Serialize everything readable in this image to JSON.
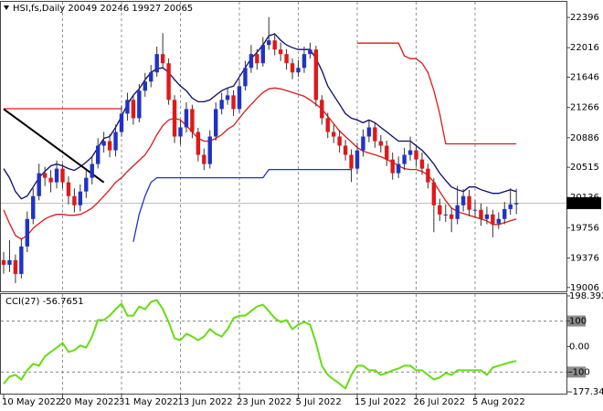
{
  "chart_data": {
    "type": "candlestick",
    "title": "HSI,fs,Daily  20049 20246 19927 20065",
    "categories": [
      "10 May 2022",
      null,
      null,
      null,
      null,
      null,
      null,
      null,
      null,
      null,
      "20 May 2022",
      null,
      null,
      null,
      null,
      null,
      null,
      null,
      null,
      null,
      "31 May 2022",
      null,
      null,
      null,
      null,
      null,
      null,
      null,
      null,
      null,
      "13 Jun 2022",
      null,
      null,
      null,
      null,
      null,
      null,
      null,
      null,
      null,
      "23 Jun 2022",
      null,
      null,
      null,
      null,
      null,
      null,
      null,
      null,
      null,
      "5 Jul 2022",
      null,
      null,
      null,
      null,
      null,
      null,
      null,
      null,
      null,
      "15 Jul 2022",
      null,
      null,
      null,
      null,
      null,
      null,
      null,
      null,
      null,
      "26 Jul 2022",
      null,
      null,
      null,
      null,
      null,
      null,
      null,
      null,
      null,
      "5 Aug 2022",
      null,
      null,
      null,
      null,
      null,
      null,
      null
    ],
    "open": [
      19350,
      19291,
      19349,
      19176,
      19521,
      19866,
      20153,
      20441,
      20383,
      20326,
      20498,
      20326,
      20153,
      20038,
      20211,
      20383,
      20556,
      20786,
      20843,
      20728,
      20958,
      21188,
      21361,
      21131,
      21476,
      21591,
      21706,
      21936,
      21821,
      21361,
      20901,
      21016,
      21246,
      20958,
      20671,
      20556,
      20901,
      21246,
      21361,
      21418,
      21246,
      21533,
      21763,
      21936,
      21821,
      22051,
      22108,
      21993,
      21936,
      21821,
      21706,
      21763,
      21936,
      21993,
      21361,
      21131,
      20958,
      20901,
      20786,
      20671,
      20498,
      20728,
      20901,
      21016,
      20843,
      20786,
      20613,
      20441,
      20556,
      20671,
      20728,
      20613,
      20498,
      20326,
      20038,
      19923,
      19923,
      19866,
      20038,
      20153,
      19981,
      19981,
      19866,
      19923,
      19808,
      19866,
      19990,
      20049
    ],
    "high": [
      19450,
      19600,
      19420,
      19620,
      19960,
      20250,
      20560,
      20520,
      20480,
      20600,
      20560,
      20400,
      20250,
      20300,
      20470,
      20640,
      20880,
      20960,
      20930,
      21050,
      21290,
      21450,
      21420,
      21560,
      21700,
      21800,
      22030,
      22200,
      21880,
      21420,
      21100,
      21330,
      21300,
      21010,
      20750,
      20980,
      21330,
      21450,
      21520,
      21480,
      21620,
      21850,
      22050,
      22000,
      22150,
      22400,
      22200,
      22080,
      22000,
      21880,
      21860,
      22030,
      22080,
      22040,
      21420,
      21200,
      21050,
      20980,
      20860,
      20740,
      20820,
      20990,
      21110,
      21080,
      20920,
      20850,
      20700,
      20650,
      20760,
      20900,
      20800,
      20700,
      20560,
      20380,
      20120,
      20050,
      20000,
      20280,
      20240,
      20230,
      20100,
      20060,
      20020,
      19980,
      19950,
      20080,
      20250,
      20246
    ],
    "low": [
      19180,
      19200,
      19061,
      19120,
      19450,
      19800,
      20100,
      20280,
      20200,
      20250,
      20250,
      20050,
      19950,
      19960,
      20130,
      20300,
      20500,
      20700,
      20640,
      20650,
      20900,
      21100,
      21050,
      21080,
      21400,
      21520,
      21650,
      21750,
      21300,
      20820,
      20800,
      20950,
      20880,
      20590,
      20480,
      20500,
      20850,
      21180,
      21300,
      21160,
      21200,
      21480,
      21700,
      21740,
      21780,
      21990,
      21920,
      21850,
      21740,
      21620,
      21650,
      21700,
      21880,
      21280,
      21050,
      20880,
      20820,
      20700,
      20600,
      20330,
      20430,
      20650,
      20830,
      20760,
      20700,
      20530,
      20360,
      20380,
      20480,
      20600,
      20530,
      20420,
      20250,
      19700,
      19840,
      19830,
      19700,
      19800,
      19960,
      19900,
      19880,
      19780,
      19800,
      19636,
      19740,
      19800,
      19920,
      19927
    ],
    "close": [
      19291,
      19349,
      19176,
      19521,
      19866,
      20153,
      20441,
      20383,
      20326,
      20498,
      20326,
      20153,
      20038,
      20211,
      20383,
      20556,
      20786,
      20843,
      20728,
      20958,
      21188,
      21361,
      21131,
      21476,
      21591,
      21706,
      21936,
      21821,
      21361,
      20901,
      21016,
      21246,
      20958,
      20671,
      20556,
      20901,
      21246,
      21361,
      21418,
      21246,
      21533,
      21763,
      21936,
      21821,
      22051,
      22108,
      21993,
      21936,
      21821,
      21706,
      21763,
      21936,
      21993,
      21361,
      21131,
      20958,
      20901,
      20786,
      20671,
      20498,
      20728,
      20901,
      21016,
      20843,
      20786,
      20613,
      20441,
      20556,
      20671,
      20728,
      20613,
      20498,
      20326,
      20038,
      19923,
      19923,
      19866,
      20038,
      20153,
      19981,
      19981,
      19866,
      19923,
      19808,
      19866,
      19990,
      20049,
      20065
    ],
    "up_color": "#1f33c6",
    "down_color": "#e01818",
    "ylim": [
      18946,
      22592
    ],
    "yticks": [
      19006,
      19376,
      19756,
      20136,
      20515,
      20886,
      21266,
      21646,
      22016,
      22396
    ],
    "series": [
      {
        "color": "#0a0a6e",
        "values": [
          20498,
          20384,
          20211,
          20119,
          20154,
          20268,
          20384,
          20464,
          20533,
          20556,
          20533,
          20498,
          20476,
          20522,
          20579,
          20648,
          20763,
          20878,
          20901,
          21016,
          21154,
          21304,
          21419,
          21499,
          21614,
          21706,
          21752,
          21764,
          21706,
          21614,
          21534,
          21476,
          21384,
          21338,
          21338,
          21361,
          21419,
          21476,
          21511,
          21534,
          21649,
          21764,
          21879,
          21959,
          22051,
          22166,
          22189,
          22109,
          22051,
          22017,
          21994,
          21994,
          21994,
          21879,
          21729,
          21534,
          21419,
          21304,
          21189,
          21131,
          21108,
          21074,
          21108,
          21074,
          21016,
          20959,
          20901,
          20844,
          20844,
          20844,
          20786,
          20729,
          20648,
          20556,
          20441,
          20349,
          20268,
          20234,
          20211,
          20268,
          20268,
          20234,
          20211,
          20188,
          20188,
          20211,
          20234,
          20211
        ]
      },
      {
        "color": "#e01818",
        "values": [
          19981,
          19809,
          19659,
          19613,
          19659,
          19751,
          19809,
          19866,
          19901,
          19924,
          19924,
          19912,
          19912,
          19924,
          19958,
          20004,
          20073,
          20154,
          20234,
          20326,
          20384,
          20464,
          20533,
          20602,
          20671,
          20786,
          20924,
          21039,
          21108,
          21131,
          21108,
          21039,
          20959,
          20878,
          20844,
          20844,
          20878,
          20924,
          20993,
          21039,
          21131,
          21223,
          21304,
          21384,
          21453,
          21499,
          21511,
          21499,
          21476,
          21453,
          21430,
          21407,
          21361,
          21304,
          21246,
          21154,
          21062,
          20970,
          20901,
          20832,
          20763,
          20717,
          20694,
          20671,
          20648,
          20613,
          20579,
          20533,
          20498,
          20487,
          20487,
          20464,
          20418,
          20326,
          20211,
          20096,
          20004,
          19958,
          19935,
          19912,
          19889,
          19866,
          19843,
          19797,
          19797,
          19820,
          19843,
          19866
        ]
      },
      {
        "color": "#e01818",
        "values": [
          21250,
          21250,
          21250,
          21250,
          21250,
          21250,
          21250,
          21250,
          21250,
          21250,
          21250,
          21250,
          21250,
          21250,
          21250,
          21250,
          21250,
          21250,
          21250,
          21250,
          21250,
          null,
          null,
          null,
          null,
          null,
          null,
          null,
          null,
          null,
          null,
          null,
          null,
          null,
          null,
          null,
          null,
          null,
          null,
          null,
          null,
          null,
          null,
          null,
          null,
          null,
          null,
          null,
          null,
          null,
          null,
          null,
          null,
          null,
          null,
          null,
          null,
          null,
          null,
          null,
          22074,
          22074,
          22074,
          22074,
          22074,
          22074,
          22074,
          22074,
          21913,
          21879,
          21879,
          21821,
          21706,
          21476,
          21189,
          20809,
          20809,
          20809,
          20809,
          20809,
          20809,
          20809,
          20809,
          20809,
          20809,
          20809,
          20809,
          20809
        ]
      },
      {
        "color": "#1f33c6",
        "values": [
          null,
          null,
          null,
          null,
          null,
          null,
          null,
          null,
          null,
          null,
          null,
          null,
          null,
          null,
          null,
          null,
          null,
          null,
          null,
          null,
          null,
          null,
          19579,
          19924,
          20154,
          20326,
          20384,
          20384,
          20384,
          20384,
          20384,
          20384,
          20384,
          20384,
          20384,
          20384,
          20384,
          20384,
          20384,
          20384,
          20384,
          20384,
          20384,
          20384,
          20384,
          20487,
          20487,
          20487,
          20487,
          20487,
          20487,
          20487,
          20487,
          20487,
          20487,
          20487,
          20487,
          20487,
          20487,
          20487,
          null,
          null,
          null,
          null,
          null,
          null,
          null,
          null,
          null,
          null,
          null,
          null,
          null,
          null,
          null,
          null,
          null,
          null,
          null,
          null,
          null,
          null,
          null,
          null,
          null,
          null,
          null,
          null
        ]
      }
    ],
    "trendline": {
      "color": "#000000",
      "x": [
        0,
        17
      ],
      "values": [
        21246,
        20326
      ]
    },
    "indicator": {
      "title": "CCI(27) -56.7651",
      "color": "#66dd11",
      "values": [
        -146,
        -118,
        -111,
        -129,
        -93,
        -68,
        -75,
        -39,
        -21,
        -4,
        14,
        -21,
        -14,
        4,
        -4,
        39,
        104,
        104,
        121,
        146,
        168,
        121,
        121,
        157,
        146,
        175,
        182,
        146,
        96,
        32,
        25,
        50,
        39,
        25,
        39,
        68,
        50,
        39,
        68,
        111,
        121,
        121,
        139,
        157,
        164,
        139,
        111,
        96,
        104,
        68,
        86,
        96,
        86,
        14,
        -75,
        -111,
        -129,
        -146,
        -164,
        -111,
        -75,
        -75,
        -93,
        -93,
        -111,
        -104,
        -93,
        -86,
        -75,
        -75,
        -93,
        -93,
        -111,
        -129,
        -121,
        -104,
        -111,
        -93,
        -93,
        -93,
        -93,
        -93,
        -111,
        -82,
        -75,
        -68,
        -61,
        -56.7651
      ],
      "ylim": [
        -177.341,
        198.3924
      ],
      "yticks": [
        -177.341,
        -100,
        {
          "value": 0,
          "label": "0.00"
        },
        100,
        198.3924
      ],
      "levels": [
        100,
        -100
      ]
    }
  }
}
